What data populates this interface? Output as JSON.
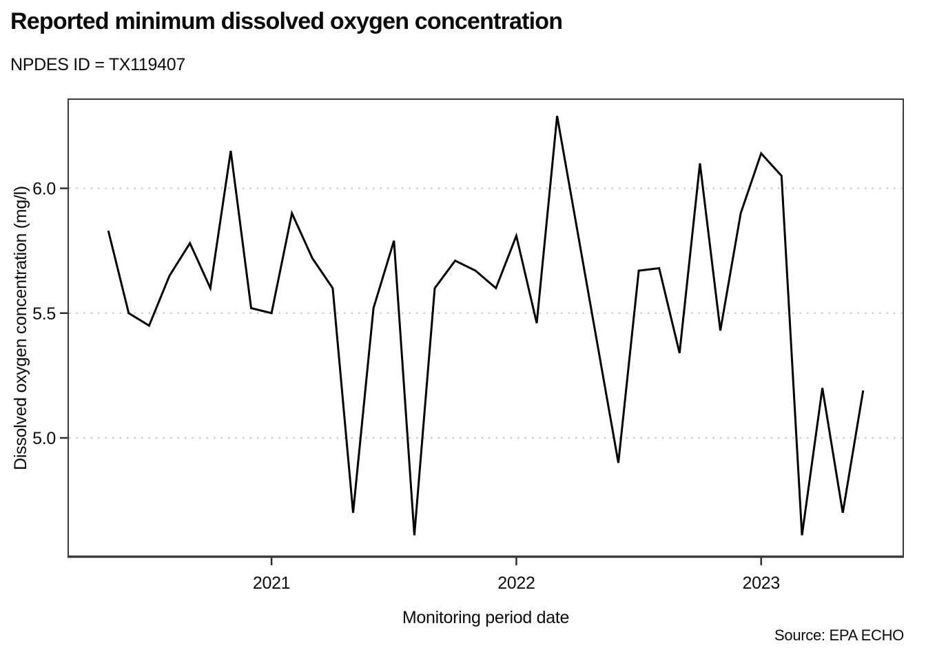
{
  "header": {
    "title": "Reported minimum dissolved oxygen concentration",
    "subtitle": "NPDES ID = TX119407"
  },
  "footer": {
    "source": "Source: EPA ECHO"
  },
  "chart_data": {
    "type": "line",
    "title": "Reported minimum dissolved oxygen concentration",
    "subtitle": "NPDES ID = TX119407",
    "xlabel": "Monitoring period date",
    "ylabel": "Dissolved oxygen concentration (mg/l)",
    "source": "EPA ECHO",
    "legend": "none",
    "grid": "horizontal-dotted",
    "line_color": "#000000",
    "grid_color": "#cbcbcb",
    "axis_color": "#3a3a3a",
    "ylim": [
      4.52,
      6.36
    ],
    "xlim_months": [
      "2020-03",
      "2023-08"
    ],
    "y_ticks": [
      6.0,
      5.5,
      5.0
    ],
    "y_gridlines": [
      6.0,
      5.5,
      5.0
    ],
    "x_ticks": [
      {
        "label": "2021",
        "month": "2021-01"
      },
      {
        "label": "2022",
        "month": "2022-01"
      },
      {
        "label": "2023",
        "month": "2023-01"
      }
    ],
    "series": [
      {
        "name": "Reported minimum dissolved oxygen concentration (mg/l)",
        "points": [
          {
            "date": "2020-05",
            "value": 5.83
          },
          {
            "date": "2020-06",
            "value": 5.5
          },
          {
            "date": "2020-07",
            "value": 5.45
          },
          {
            "date": "2020-08",
            "value": 5.65
          },
          {
            "date": "2020-09",
            "value": 5.78
          },
          {
            "date": "2020-10",
            "value": 5.6
          },
          {
            "date": "2020-11",
            "value": 6.15
          },
          {
            "date": "2020-12",
            "value": 5.52
          },
          {
            "date": "2021-01",
            "value": 5.5
          },
          {
            "date": "2021-02",
            "value": 5.9
          },
          {
            "date": "2021-03",
            "value": 5.72
          },
          {
            "date": "2021-04",
            "value": 5.6
          },
          {
            "date": "2021-05",
            "value": 4.7
          },
          {
            "date": "2021-06",
            "value": 5.52
          },
          {
            "date": "2021-07",
            "value": 5.79
          },
          {
            "date": "2021-08",
            "value": 4.61
          },
          {
            "date": "2021-09",
            "value": 5.6
          },
          {
            "date": "2021-10",
            "value": 5.71
          },
          {
            "date": "2021-11",
            "value": 5.67
          },
          {
            "date": "2021-12",
            "value": 5.6
          },
          {
            "date": "2022-01",
            "value": 5.81
          },
          {
            "date": "2022-02",
            "value": 5.46
          },
          {
            "date": "2022-03",
            "value": 6.29
          },
          {
            "date": "2022-06",
            "value": 4.9
          },
          {
            "date": "2022-07",
            "value": 5.67
          },
          {
            "date": "2022-08",
            "value": 5.68
          },
          {
            "date": "2022-09",
            "value": 5.34
          },
          {
            "date": "2022-10",
            "value": 6.1
          },
          {
            "date": "2022-11",
            "value": 5.43
          },
          {
            "date": "2022-12",
            "value": 5.9
          },
          {
            "date": "2023-01",
            "value": 6.14
          },
          {
            "date": "2023-02",
            "value": 6.05
          },
          {
            "date": "2023-03",
            "value": 4.61
          },
          {
            "date": "2023-04",
            "value": 5.2
          },
          {
            "date": "2023-05",
            "value": 4.7
          },
          {
            "date": "2023-06",
            "value": 5.19
          }
        ]
      }
    ]
  }
}
